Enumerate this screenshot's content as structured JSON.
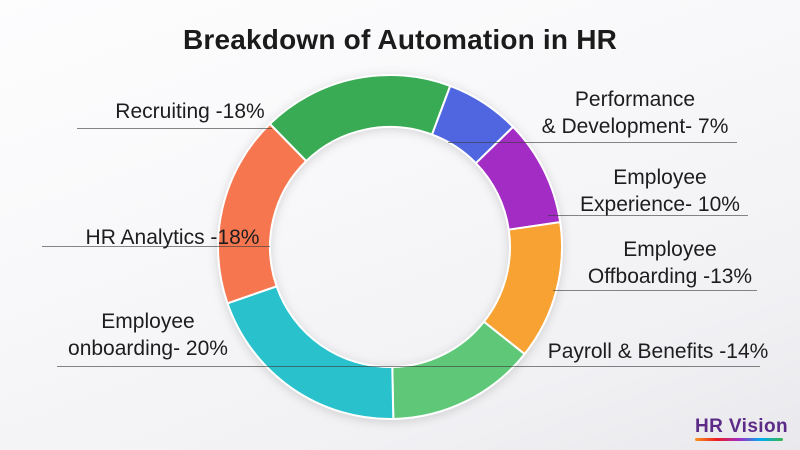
{
  "page": {
    "title": "Breakdown of Automation in HR"
  },
  "chart_data": {
    "type": "pie",
    "subtype": "donut",
    "title": "Breakdown of Automation in HR",
    "total": 100,
    "unit": "%",
    "start_angle_deg": -44.3,
    "direction": "clockwise",
    "legend_position": "callout-labels",
    "segments": [
      {
        "id": "recruiting",
        "label": "Recruiting",
        "value": 18,
        "color": "#3aab55",
        "display_lines": [
          "Recruiting -18%"
        ]
      },
      {
        "id": "performance-development",
        "label": "Performance & Development",
        "value": 7,
        "color": "#5066e0",
        "display_lines": [
          "Performance",
          "& Development- 7%"
        ]
      },
      {
        "id": "employee-experience",
        "label": "Employee Experience",
        "value": 10,
        "color": "#a32cc4",
        "display_lines": [
          "Employee",
          "Experience- 10%"
        ]
      },
      {
        "id": "employee-offboarding",
        "label": "Employee Offboarding",
        "value": 13,
        "color": "#f7a233",
        "display_lines": [
          "Employee",
          "Offboarding -13%"
        ]
      },
      {
        "id": "payroll-benefits",
        "label": "Payroll & Benefits",
        "value": 14,
        "color": "#5fc878",
        "display_lines": [
          "Payroll & Benefits -14%"
        ]
      },
      {
        "id": "employee-onboarding",
        "label": "Employee onboarding",
        "value": 20,
        "color": "#29c2cc",
        "display_lines": [
          "Employee",
          "onboarding- 20%"
        ]
      },
      {
        "id": "hr-analytics",
        "label": "HR Analytics",
        "value": 18,
        "color": "#f5764f",
        "display_lines": [
          "HR Analytics -18%"
        ]
      }
    ]
  },
  "logo": {
    "text": "HR Vision",
    "color": "#5c2b87",
    "underline_colors": [
      "#f7941d",
      "#ed1c24",
      "#a12cc4",
      "#00aeef",
      "#39b54a"
    ]
  }
}
